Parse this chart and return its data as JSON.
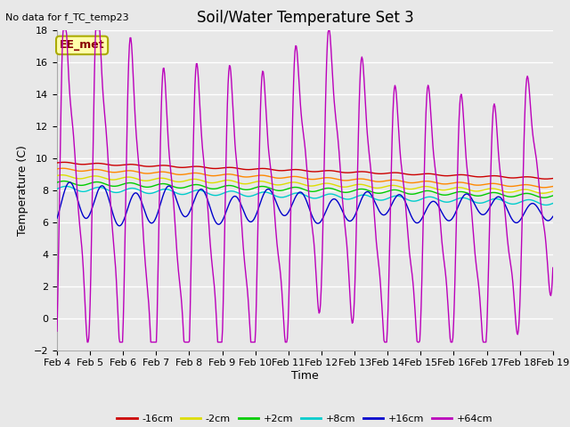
{
  "title": "Soil/Water Temperature Set 3",
  "ylabel": "Temperature (C)",
  "xlabel": "Time",
  "no_data_text": "No data for f_TC_temp23",
  "legend_label_text": "EE_met",
  "ylim": [
    -2,
    18
  ],
  "series_colors": {
    "-16cm": "#cc0000",
    "-8cm": "#ff8800",
    "-2cm": "#dddd00",
    "+2cm": "#00cc00",
    "+8cm": "#00cccc",
    "+16cm": "#0000cc",
    "+64cm": "#bb00bb"
  },
  "x_tick_labels": [
    "Feb 4",
    "Feb 5",
    "Feb 6",
    "Feb 7",
    "Feb 8",
    "Feb 9",
    "Feb 10",
    "Feb 11",
    "Feb 12",
    "Feb 13",
    "Feb 14",
    "Feb 15",
    "Feb 16",
    "Feb 17",
    "Feb 18",
    "Feb 19"
  ],
  "plot_bg_color": "#e8e8e8",
  "grid_color": "#ffffff",
  "title_fontsize": 12,
  "axis_fontsize": 9,
  "tick_fontsize": 8
}
